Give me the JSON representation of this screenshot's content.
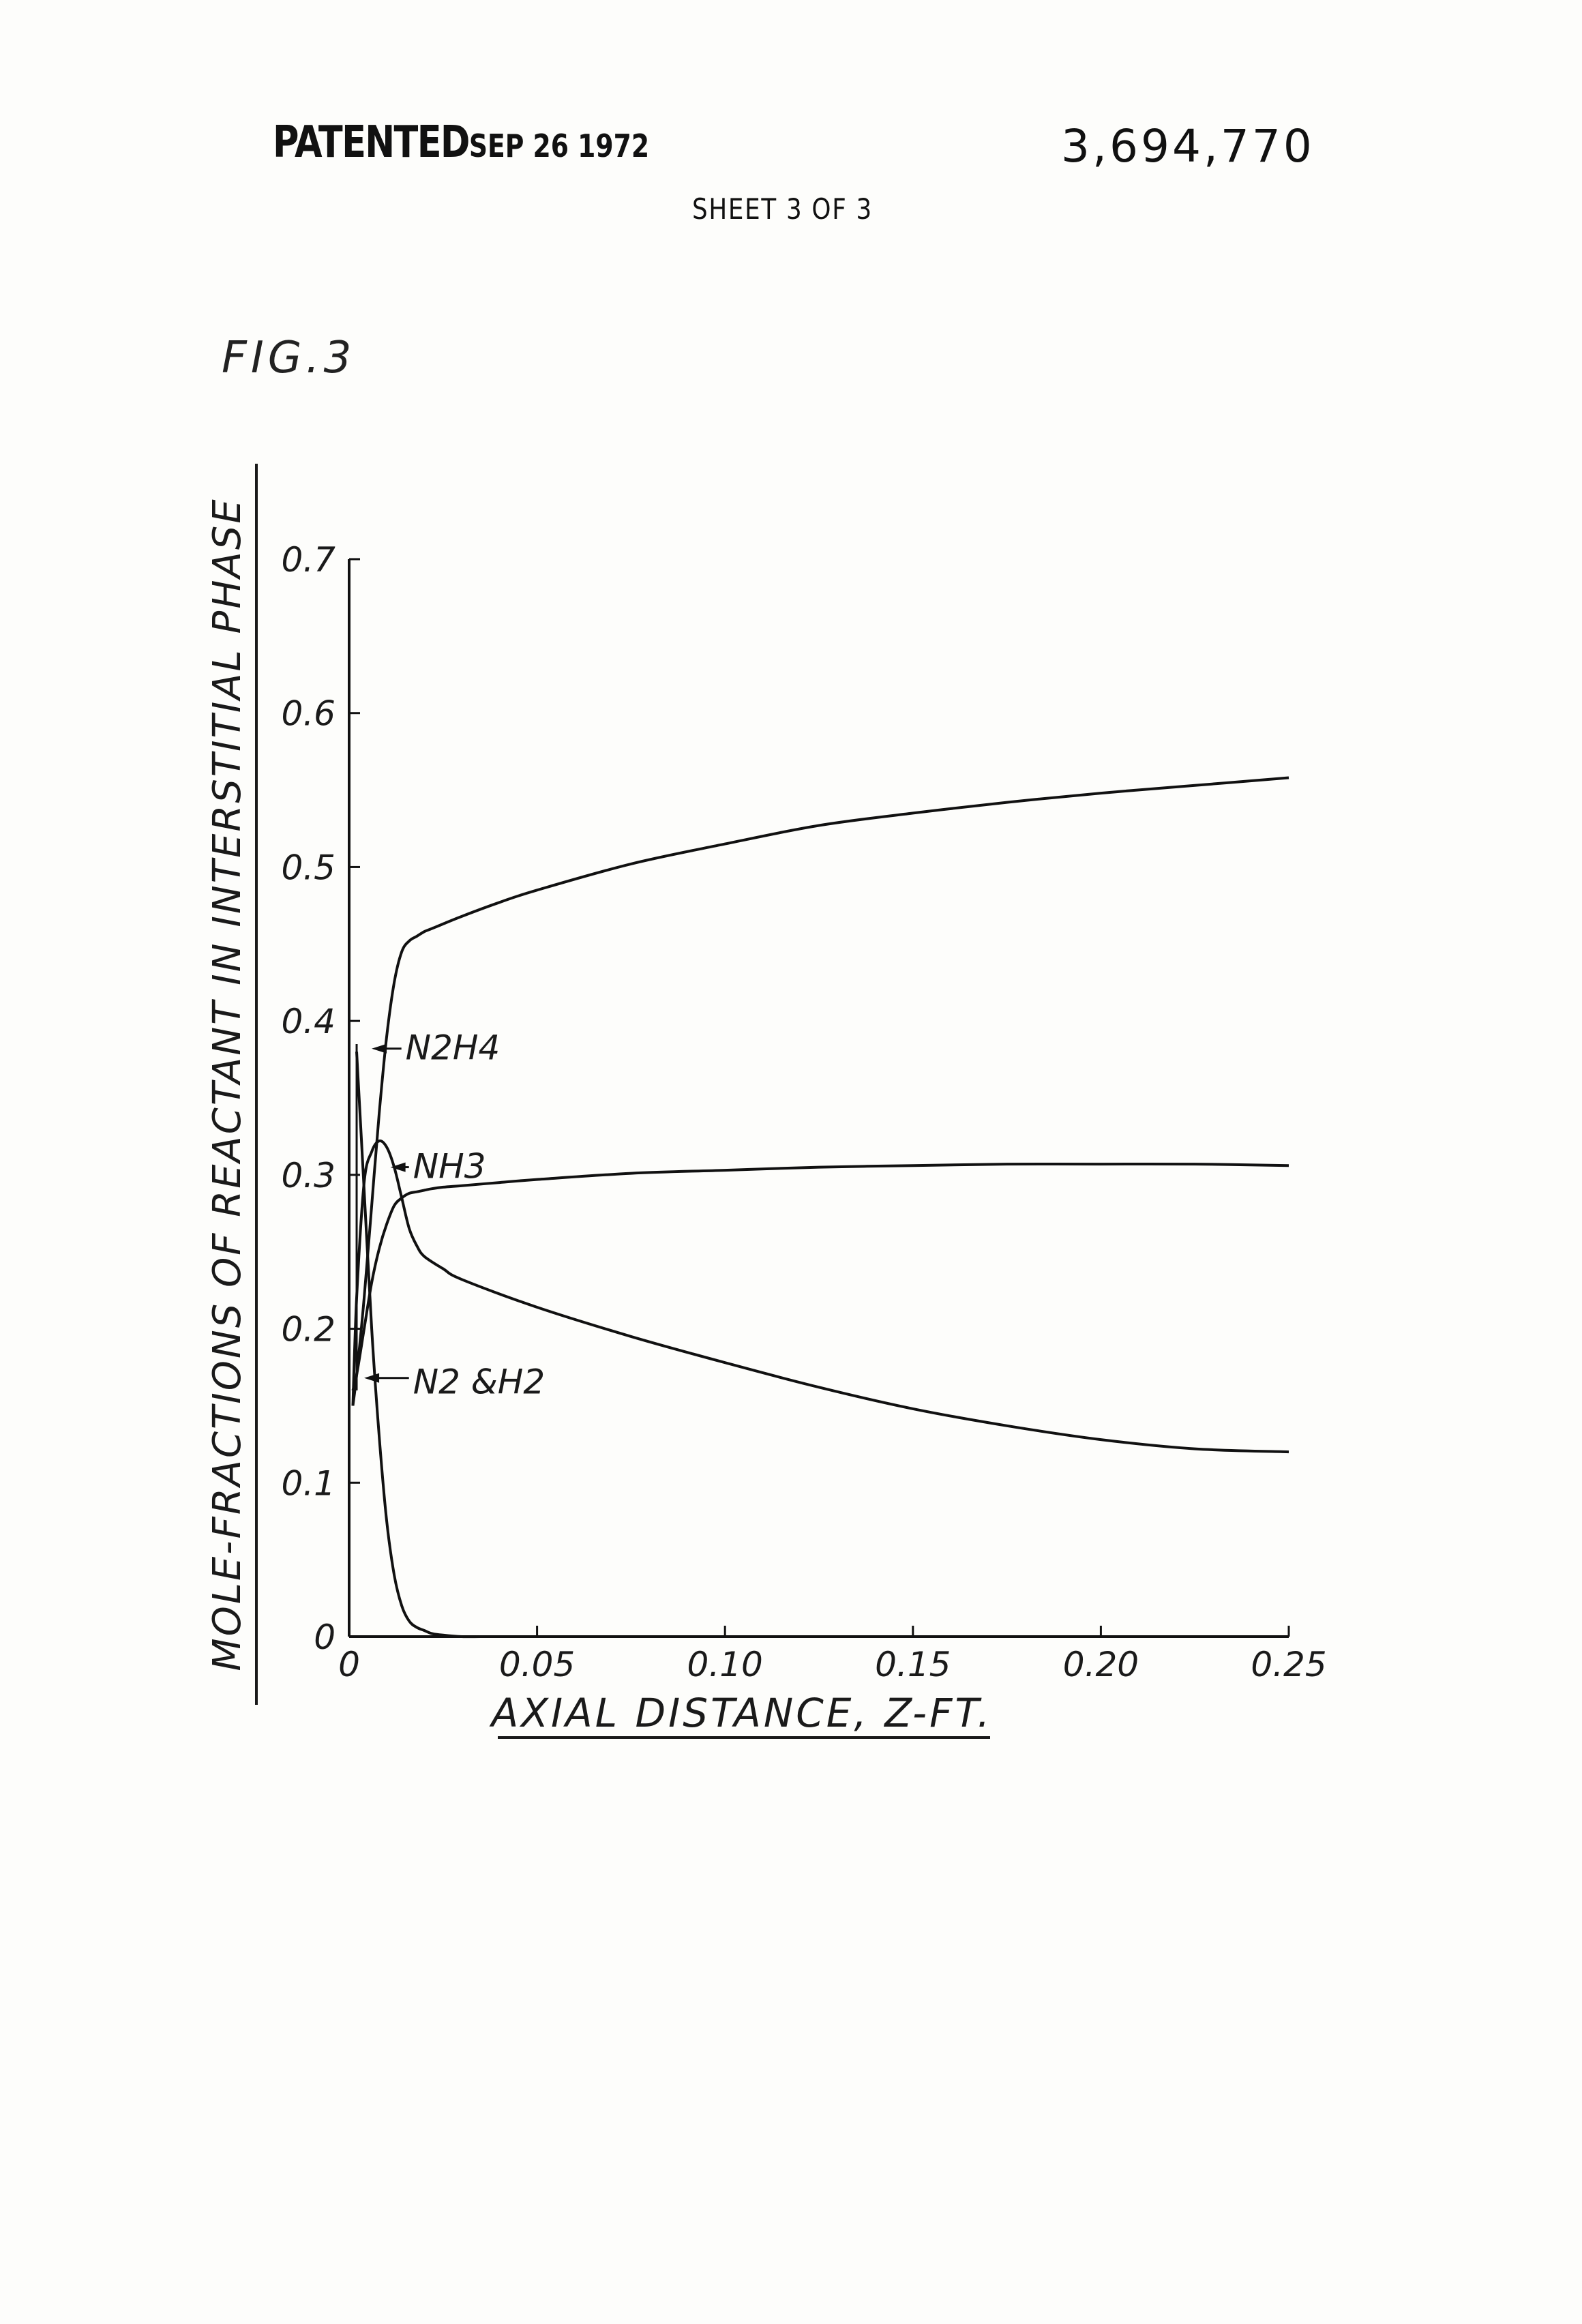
{
  "header": {
    "patented_label": "PATENTED",
    "patented_date": "SEP 26 1972",
    "patent_number": "3,694,770",
    "sheet": "SHEET 3 OF 3"
  },
  "figure_label": "FIG.3",
  "chart_data": {
    "type": "line",
    "title": "",
    "xlabel": "AXIAL DISTANCE, Z-FT.",
    "ylabel": "MOLE-FRACTIONS OF REACTANT IN INTERSTITIAL PHASE",
    "xlim": [
      0,
      0.25
    ],
    "ylim": [
      0,
      0.7
    ],
    "x_ticks": [
      0,
      0.05,
      0.1,
      0.15,
      0.2,
      0.25
    ],
    "x_tick_labels": [
      "0",
      "0.05",
      "0.10",
      "0.15",
      "0.20",
      "0.25"
    ],
    "y_ticks": [
      0,
      0.1,
      0.2,
      0.3,
      0.4,
      0.5,
      0.6,
      0.7
    ],
    "y_tick_labels": [
      "0",
      "0.1",
      "0.2",
      "0.3",
      "0.4",
      "0.5",
      "0.6",
      "0.7"
    ],
    "grid": false,
    "legend": "none",
    "annotations": [
      "N2H4",
      "NH3",
      "N2 &H2"
    ],
    "series": [
      {
        "x": [
          0.002,
          0.004,
          0.006,
          0.008,
          0.01,
          0.012,
          0.014,
          0.016,
          0.018,
          0.02,
          0.022,
          0.025,
          0.03,
          0.035,
          0.04
        ],
        "y": [
          0.38,
          0.29,
          0.2,
          0.13,
          0.075,
          0.04,
          0.02,
          0.01,
          0.006,
          0.004,
          0.002,
          0.001,
          0.0,
          0.0,
          0.0
        ]
      },
      {
        "x": [
          0.001,
          0.002,
          0.004,
          0.006,
          0.008,
          0.01,
          0.012,
          0.014,
          0.016,
          0.018,
          0.02,
          0.025,
          0.03,
          0.05,
          0.075,
          0.1,
          0.125,
          0.15,
          0.175,
          0.2,
          0.225,
          0.25
        ],
        "y": [
          0.15,
          0.22,
          0.295,
          0.315,
          0.322,
          0.318,
          0.305,
          0.285,
          0.265,
          0.254,
          0.247,
          0.239,
          0.232,
          0.214,
          0.195,
          0.178,
          0.162,
          0.148,
          0.137,
          0.128,
          0.122,
          0.12
        ]
      },
      {
        "x": [
          0.001,
          0.002,
          0.004,
          0.006,
          0.008,
          0.01,
          0.012,
          0.014,
          0.016,
          0.018,
          0.02,
          0.022,
          0.025,
          0.03,
          0.04,
          0.05,
          0.075,
          0.1,
          0.125,
          0.15,
          0.175,
          0.2,
          0.225,
          0.25
        ],
        "y": [
          0.16,
          0.17,
          0.2,
          0.23,
          0.252,
          0.268,
          0.28,
          0.285,
          0.288,
          0.289,
          0.29,
          0.291,
          0.292,
          0.293,
          0.295,
          0.297,
          0.301,
          0.303,
          0.305,
          0.306,
          0.307,
          0.307,
          0.307,
          0.306
        ]
      },
      {
        "x": [
          0.001,
          0.002,
          0.004,
          0.006,
          0.008,
          0.01,
          0.012,
          0.014,
          0.016,
          0.018,
          0.02,
          0.022,
          0.025,
          0.03,
          0.04,
          0.05,
          0.075,
          0.1,
          0.125,
          0.15,
          0.175,
          0.2,
          0.225,
          0.25
        ],
        "y": [
          0.15,
          0.17,
          0.22,
          0.28,
          0.34,
          0.39,
          0.425,
          0.445,
          0.452,
          0.455,
          0.458,
          0.46,
          0.463,
          0.468,
          0.477,
          0.485,
          0.502,
          0.515,
          0.527,
          0.535,
          0.542,
          0.548,
          0.553,
          0.558
        ]
      }
    ]
  }
}
